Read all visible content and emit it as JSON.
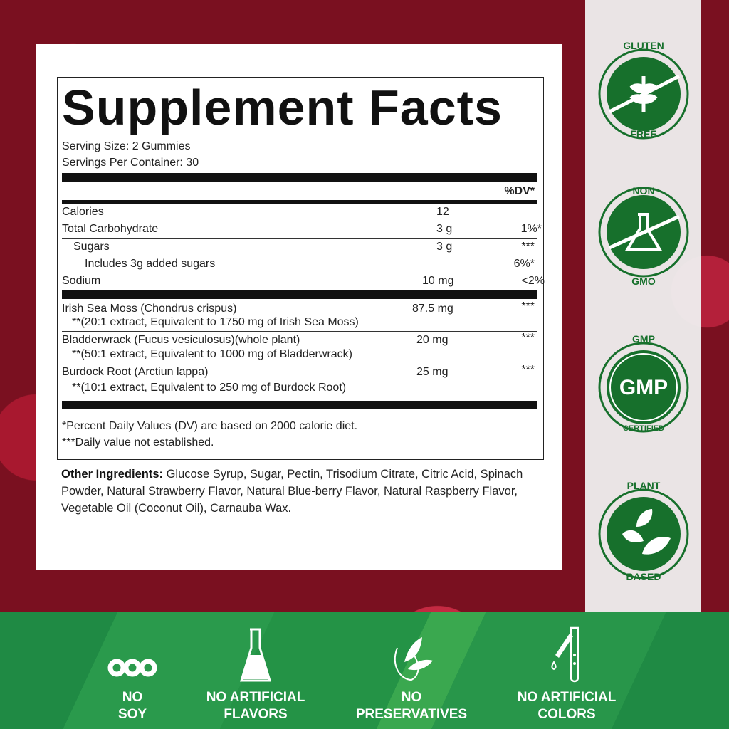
{
  "facts": {
    "title": "Supplement Facts",
    "serving_size": "Serving Size: 2 Gummies",
    "servings_per_container": "Servings Per Container: 30",
    "dv_header": "%DV*",
    "nutrients": [
      {
        "name": "Calories",
        "amount": "12",
        "dv": ""
      },
      {
        "name": "Total Carbohydrate",
        "amount": "3 g",
        "dv": "1%*"
      },
      {
        "name": "Sugars",
        "amount": "3 g",
        "dv": "***"
      },
      {
        "name": "Includes 3g added sugars",
        "amount": "",
        "dv": "6%*"
      },
      {
        "name": "Sodium",
        "amount": "10 mg",
        "dv": "<2%"
      }
    ],
    "ingredients": [
      {
        "name": "Irish Sea Moss (Chondrus crispus)",
        "note": "**(20:1 extract, Equivalent to 1750 mg of Irish Sea Moss)",
        "amount": "87.5 mg",
        "dv": "***"
      },
      {
        "name": "Bladderwrack (Fucus vesiculosus)(whole plant)",
        "note": "**(50:1 extract, Equivalent to 1000 mg of Bladderwrack)",
        "amount": "20 mg",
        "dv": "***"
      },
      {
        "name": "Burdock Root (Arctiun lappa)",
        "note": "**(10:1 extract, Equivalent to 250 mg of Burdock Root)",
        "amount": "25 mg",
        "dv": "***"
      }
    ],
    "footnote1": "*Percent Daily Values (DV) are based on 2000 calorie diet.",
    "footnote2": "***Daily value not established."
  },
  "other_ingredients": {
    "label": "Other Ingredients:",
    "text": " Glucose Syrup, Sugar, Pectin, Trisodium Citrate, Citric Acid, Spinach Powder, Natural Strawberry Flavor, Natural Blue-berry Flavor, Natural Raspberry Flavor, Vegetable Oil (Coconut Oil), Carnauba Wax."
  },
  "badges": [
    {
      "top": "GLUTEN",
      "bottom": "FREE",
      "icon": "wheat-crossed-icon"
    },
    {
      "top": "NON",
      "bottom": "GMO",
      "icon": "flask-crossed-icon"
    },
    {
      "top": "GMP",
      "bottom": "CERTIFIED",
      "center": "GMP",
      "icon": "gmp-icon"
    },
    {
      "top": "PLANT",
      "bottom": "BASED",
      "icon": "leaves-icon"
    }
  ],
  "features": [
    {
      "line1": "NO",
      "line2": "SOY",
      "icon": "soybean-icon"
    },
    {
      "line1": "NO ARTIFICIAL",
      "line2": "FLAVORS",
      "icon": "flask-icon"
    },
    {
      "line1": "NO",
      "line2": "PRESERVATIVES",
      "icon": "leaf-drop-icon"
    },
    {
      "line1": "NO ARTIFICIAL",
      "line2": "COLORS",
      "icon": "dropper-test-tube-icon"
    }
  ],
  "colors": {
    "badge_green": "#17702c",
    "band_green": "#2a9a4c"
  }
}
